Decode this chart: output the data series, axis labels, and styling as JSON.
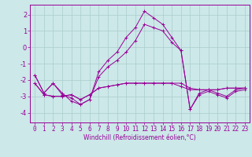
{
  "xlabel": "Windchill (Refroidissement éolien,°C)",
  "background_color": "#cce8e8",
  "grid_color": "#aacccc",
  "line_color": "#990099",
  "x_ticks": [
    0,
    1,
    2,
    3,
    4,
    5,
    6,
    7,
    8,
    9,
    10,
    11,
    12,
    13,
    14,
    15,
    16,
    17,
    18,
    19,
    20,
    21,
    22,
    23
  ],
  "y_ticks": [
    -4,
    -3,
    -2,
    -1,
    0,
    1,
    2
  ],
  "ylim": [
    -4.6,
    2.6
  ],
  "xlim": [
    -0.5,
    23.5
  ],
  "lines": [
    [
      -1.7,
      -2.8,
      -2.2,
      -2.8,
      -3.3,
      -3.5,
      -3.2,
      -1.5,
      -0.8,
      -0.3,
      0.6,
      1.2,
      2.2,
      1.8,
      1.4,
      0.6,
      -0.2,
      -3.8,
      -2.8,
      -2.6,
      -2.8,
      -3.0,
      -2.6,
      -2.5
    ],
    [
      -1.7,
      -2.8,
      -2.2,
      -2.9,
      -3.1,
      -3.5,
      -3.2,
      -1.8,
      -1.2,
      -0.8,
      -0.3,
      0.4,
      1.4,
      1.2,
      1.0,
      0.3,
      -0.2,
      -3.8,
      -2.9,
      -2.7,
      -2.9,
      -3.1,
      -2.7,
      -2.6
    ],
    [
      -2.2,
      -2.9,
      -3.0,
      -3.0,
      -2.9,
      -3.2,
      -2.9,
      -2.5,
      -2.4,
      -2.3,
      -2.2,
      -2.2,
      -2.2,
      -2.2,
      -2.2,
      -2.2,
      -2.2,
      -2.5,
      -2.6,
      -2.6,
      -2.6,
      -2.5,
      -2.5,
      -2.5
    ],
    [
      -2.2,
      -2.9,
      -3.0,
      -3.0,
      -2.9,
      -3.2,
      -2.9,
      -2.5,
      -2.4,
      -2.3,
      -2.2,
      -2.2,
      -2.2,
      -2.2,
      -2.2,
      -2.2,
      -2.4,
      -2.6,
      -2.6,
      -2.6,
      -2.6,
      -2.5,
      -2.5,
      -2.5
    ]
  ],
  "tick_fontsize": 5.5,
  "xlabel_fontsize": 5.5,
  "linewidth": 0.7,
  "markersize": 2.5
}
